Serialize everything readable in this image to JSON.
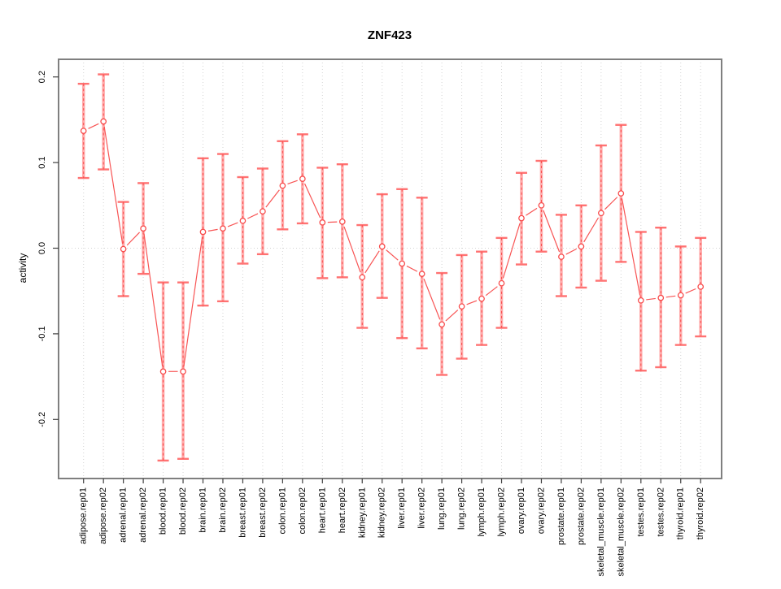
{
  "title": "ZNF423",
  "chart_data": {
    "type": "line",
    "title": "ZNF423",
    "xlabel": "",
    "ylabel": "activity",
    "ylim": [
      -0.27,
      0.22
    ],
    "yticks": [
      0.2,
      0.1,
      0.0,
      -0.1,
      -0.2
    ],
    "ytick_labels": [
      "0.2",
      "0.1",
      "0.0",
      "-0.1",
      "-0.2"
    ],
    "grid": {
      "vertical": "dotted line at every category",
      "horizontal": "dotted line at y=0 only"
    },
    "legend": "none",
    "marker": "open-circle",
    "categories": [
      "adipose.rep01",
      "adipose.rep02",
      "adrenal.rep01",
      "adrenal.rep02",
      "blood.rep01",
      "blood.rep02",
      "brain.rep01",
      "brain.rep02",
      "breast.rep01",
      "breast.rep02",
      "colon.rep01",
      "colon.rep02",
      "heart.rep01",
      "heart.rep02",
      "kidney.rep01",
      "kidney.rep02",
      "liver.rep01",
      "liver.rep02",
      "lung.rep01",
      "lung.rep02",
      "lymph.rep01",
      "lymph.rep02",
      "ovary.rep01",
      "ovary.rep02",
      "prostate.rep01",
      "prostate.rep02",
      "skeletal_muscle.rep01",
      "skeletal_muscle.rep02",
      "testes.rep01",
      "testes.rep02",
      "thyroid.rep01",
      "thyroid.rep02"
    ],
    "series": [
      {
        "name": "activity",
        "values": [
          0.137,
          0.148,
          -0.001,
          0.023,
          -0.144,
          -0.144,
          0.019,
          0.023,
          0.032,
          0.043,
          0.073,
          0.081,
          0.03,
          0.031,
          -0.034,
          0.002,
          -0.018,
          -0.03,
          -0.089,
          -0.068,
          -0.059,
          -0.041,
          0.035,
          0.05,
          -0.01,
          0.002,
          0.041,
          0.064,
          -0.061,
          -0.058,
          -0.055,
          -0.045
        ],
        "ci_high": [
          0.192,
          0.203,
          0.054,
          0.076,
          -0.04,
          -0.04,
          0.105,
          0.11,
          0.083,
          0.093,
          0.125,
          0.133,
          0.094,
          0.098,
          0.027,
          0.063,
          0.069,
          0.059,
          -0.029,
          -0.008,
          -0.004,
          0.012,
          0.088,
          0.102,
          0.039,
          0.05,
          0.12,
          0.144,
          0.019,
          0.024,
          0.002,
          0.012
        ],
        "ci_low": [
          0.082,
          0.092,
          -0.056,
          -0.03,
          -0.248,
          -0.246,
          -0.067,
          -0.062,
          -0.018,
          -0.007,
          0.022,
          0.029,
          -0.035,
          -0.034,
          -0.093,
          -0.058,
          -0.105,
          -0.117,
          -0.148,
          -0.129,
          -0.113,
          -0.093,
          -0.019,
          -0.004,
          -0.056,
          -0.046,
          -0.038,
          -0.016,
          -0.143,
          -0.139,
          -0.113,
          -0.103
        ]
      }
    ],
    "colors": {
      "line": "#f85454",
      "marker_stroke": "#f84b4b",
      "marker_fill": "#ffffff",
      "errorbar_band": "#ffabab",
      "errorbar_cap": "#ff7272",
      "errorbar_dash": "#f94b4b",
      "grid": "#d4d4d4",
      "box": "#7f7f7f",
      "tick": "#404040",
      "text": "#000000",
      "background": "#ffffff"
    }
  }
}
